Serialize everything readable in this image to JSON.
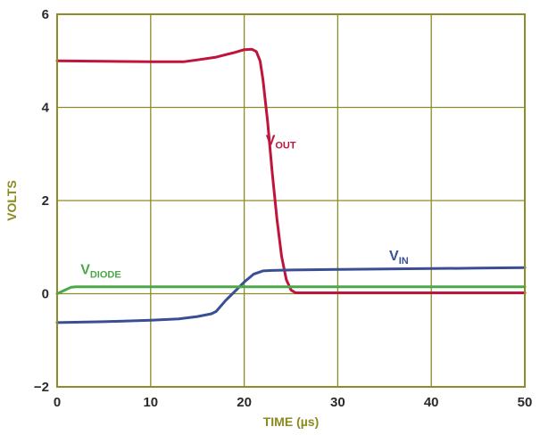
{
  "chart_data": {
    "type": "line",
    "title": "",
    "xlabel": "TIME (µs)",
    "ylabel": "VOLTS",
    "xlim": [
      0,
      50
    ],
    "ylim": [
      -2,
      6
    ],
    "xticks": [
      0,
      10,
      20,
      30,
      40,
      50
    ],
    "yticks": [
      -2,
      0,
      2,
      4,
      6
    ],
    "xtick_labels": [
      "0",
      "10",
      "20",
      "30",
      "40",
      "50"
    ],
    "ytick_labels": [
      "−2",
      "0",
      "2",
      "4",
      "6"
    ],
    "grid": true,
    "series": [
      {
        "name": "VOUT",
        "label_main": "V",
        "label_sub": "OUT",
        "label_at": [
          22.3,
          3.2
        ],
        "color": "#c0143c",
        "x": [
          0,
          5,
          10,
          13.5,
          15,
          17,
          19,
          20,
          20.8,
          21.3,
          21.7,
          22.0,
          22.5,
          23.0,
          23.5,
          24.0,
          24.5,
          25.0,
          25.5,
          26,
          30,
          40,
          50
        ],
        "y": [
          5.0,
          4.99,
          4.98,
          4.98,
          5.02,
          5.08,
          5.18,
          5.24,
          5.25,
          5.2,
          5.0,
          4.6,
          3.7,
          2.6,
          1.6,
          0.8,
          0.3,
          0.08,
          0.02,
          0.02,
          0.02,
          0.02,
          0.02
        ]
      },
      {
        "name": "VIN",
        "label_main": "V",
        "label_sub": "IN",
        "label_at": [
          35.5,
          0.72
        ],
        "color": "#3a4e94",
        "x": [
          0,
          5,
          10,
          13,
          15,
          16.5,
          17,
          18,
          19,
          20,
          21,
          22,
          23,
          25,
          30,
          35,
          40,
          45,
          50
        ],
        "y": [
          -0.62,
          -0.6,
          -0.57,
          -0.54,
          -0.49,
          -0.43,
          -0.38,
          -0.15,
          0.05,
          0.25,
          0.42,
          0.49,
          0.5,
          0.51,
          0.52,
          0.53,
          0.54,
          0.55,
          0.56
        ]
      },
      {
        "name": "VDIODE",
        "label_main": "V",
        "label_sub": "DIODE",
        "label_at": [
          2.5,
          0.42
        ],
        "color": "#4aa84a",
        "x": [
          0,
          1.5,
          2.0,
          10,
          20,
          30,
          40,
          50
        ],
        "y": [
          0.0,
          0.14,
          0.15,
          0.15,
          0.15,
          0.15,
          0.15,
          0.15
        ]
      }
    ]
  },
  "style": {
    "grid_color": "#8c8c28",
    "axis_color": "#8c8c28",
    "background": "#ffffff"
  }
}
